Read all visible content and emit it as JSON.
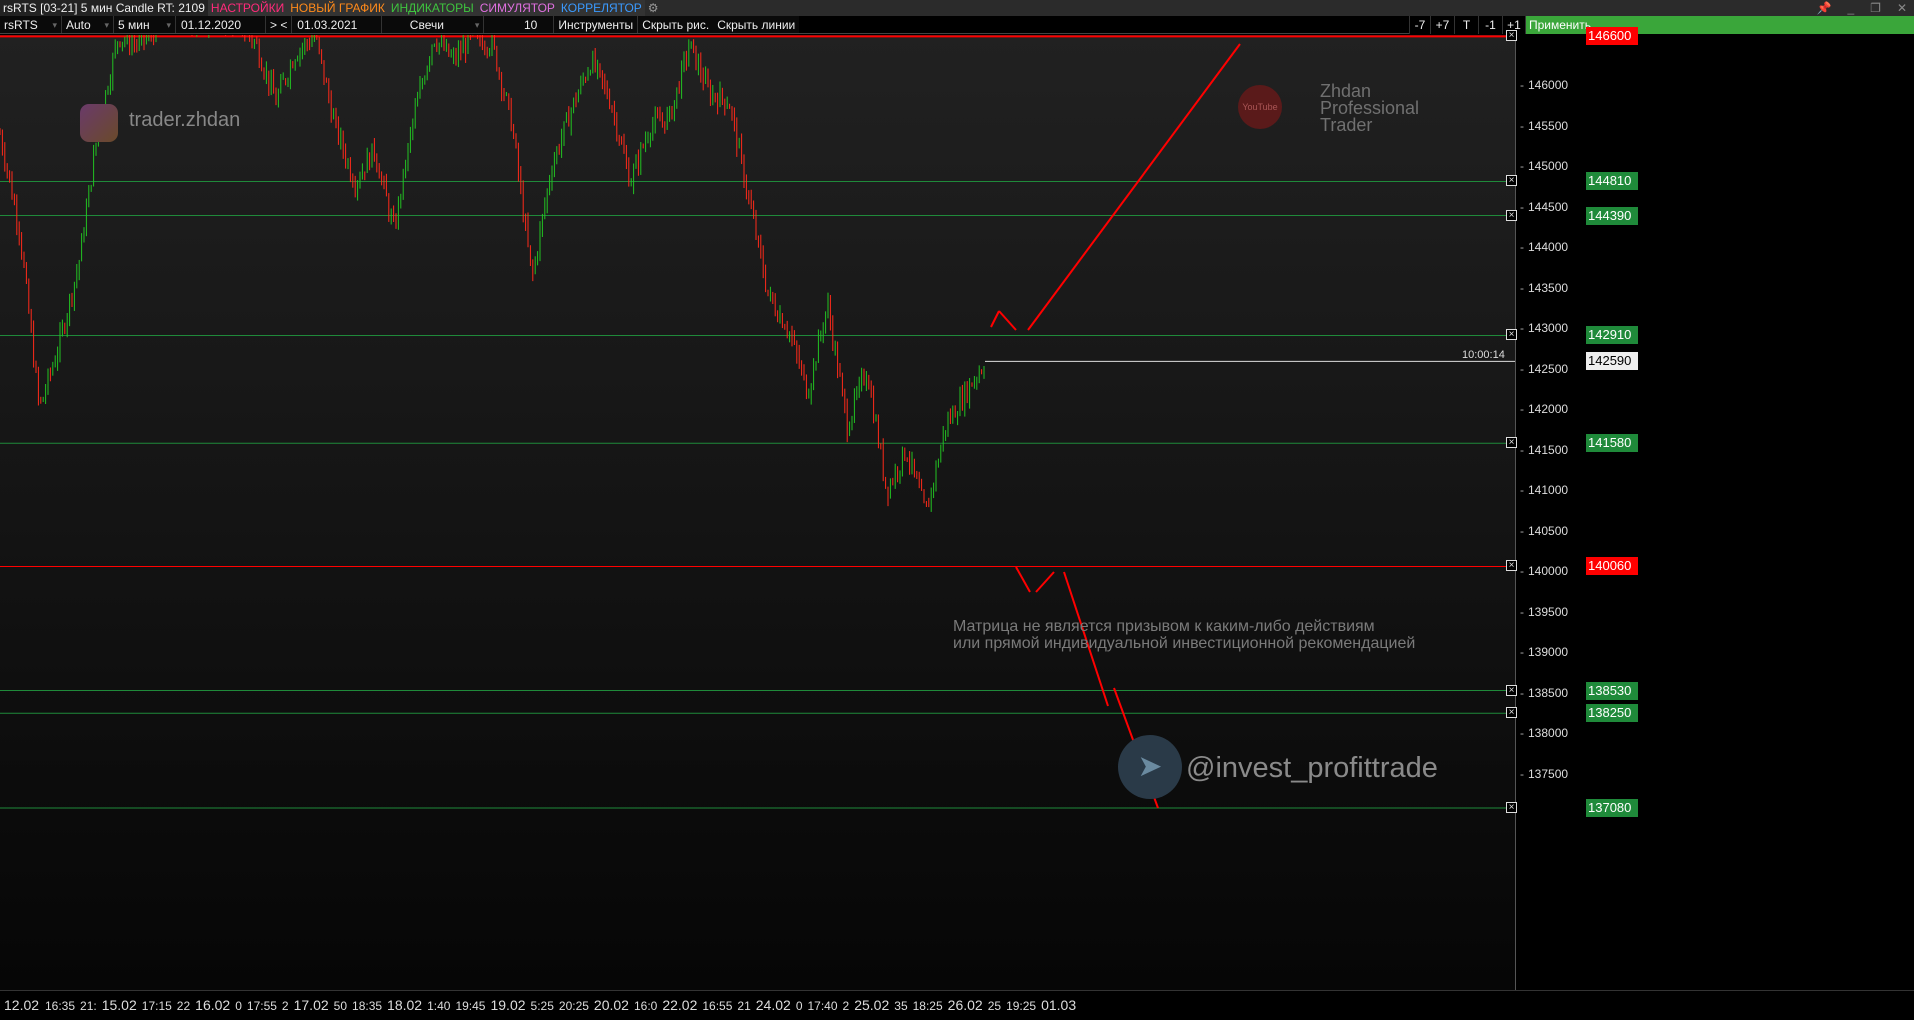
{
  "titlebar": {
    "title": "rsRTS [03-21] 5 мин Candle RT: 2109",
    "settings": "НАСТРОЙКИ",
    "new_chart": "НОВЫЙ ГРАФИК",
    "indicators": "ИНДИКАТОРЫ",
    "simulator": "СИМУЛЯТОР",
    "correlator": "КОРРЕЛЯТОР",
    "gear_icon": "gear-icon"
  },
  "toolbar": {
    "symbol": "rsRTS",
    "scale": "Auto",
    "timeframe": "5 мин",
    "date_from": "01.12.2020",
    "nav": "> <",
    "date_to": "01.03.2021",
    "chart_type": "Свечи",
    "count": "10",
    "instruments": "Инструменты",
    "hide_drawings": "Скрыть рис.",
    "hide_lines": "Скрыть линии",
    "btn_m7": "-7",
    "btn_p7": "+7",
    "btn_t": "T",
    "btn_m1": "-1",
    "btn_p1": "+1",
    "apply": "Применить"
  },
  "colors": {
    "up": "#22c222",
    "down": "#ff2a1a",
    "level_green": "#1f8a3a",
    "level_red": "#ff0000",
    "drawing": "#ff0000"
  },
  "price_axis": {
    "ticks": [
      146000,
      145500,
      145000,
      144500,
      144000,
      143500,
      143000,
      142500,
      142000,
      141500,
      141000,
      140500,
      140000,
      139500,
      139000,
      138500,
      138000,
      137500
    ]
  },
  "levels": [
    {
      "price": "146600",
      "color": "red"
    },
    {
      "price": "144810",
      "color": "green"
    },
    {
      "price": "144390",
      "color": "green"
    },
    {
      "price": "142910",
      "color": "green"
    },
    {
      "price": "141580",
      "color": "green"
    },
    {
      "price": "140060",
      "color": "red"
    },
    {
      "price": "138530",
      "color": "green"
    },
    {
      "price": "138250",
      "color": "green"
    },
    {
      "price": "137080",
      "color": "green"
    }
  ],
  "current": {
    "price": "142590",
    "time": "10:00:14"
  },
  "time_axis": [
    "12.02",
    "16:35",
    "21:",
    "15.02",
    "17:15",
    "22",
    "16.02",
    "0",
    "17:55",
    "2",
    "17.02",
    "50",
    "18:35",
    "18.02",
    "1:40",
    "19:45",
    "19.02",
    "5:25",
    "20:25",
    "20.02",
    "16:0",
    "22.02",
    "16:55",
    "21",
    "24.02",
    "0",
    "17:40",
    "2",
    "25.02",
    "35",
    "18:25",
    "26.02",
    "25",
    "19:25",
    "01.03"
  ],
  "chart_data": {
    "type": "candlestick",
    "price_path": [
      145400,
      144200,
      142000,
      142800,
      143800,
      145500,
      146600,
      146500,
      146700,
      146800,
      146800,
      146800,
      146800,
      146500,
      145800,
      146400,
      146600,
      145500,
      144800,
      145200,
      144200,
      145600,
      146600,
      146300,
      146600,
      146500,
      145500,
      143600,
      145000,
      145700,
      146300,
      145800,
      144800,
      145500,
      145600,
      146500,
      145900,
      145800,
      144600,
      143400,
      143000,
      142200,
      143300,
      141800,
      142500,
      141000,
      141500,
      140700,
      141800,
      142200,
      142590
    ]
  },
  "watermarks": {
    "instagram": "trader.zhdan",
    "brand": "Zhdan\nProfessional\nTrader",
    "youtube": "YouTube",
    "disclaimer": "Матрица не является призывом к каким-либо действиям\nили прямой индивидуальной инвестиционной рекомендацией",
    "telegram": "@invest_profittrade"
  }
}
